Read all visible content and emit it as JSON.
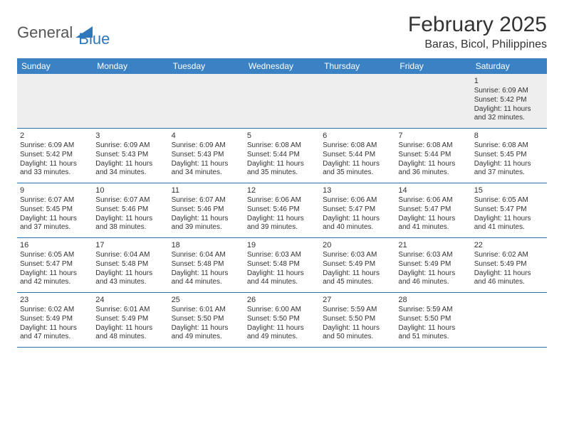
{
  "logo": {
    "text1": "General",
    "text2": "Blue"
  },
  "title": "February 2025",
  "location": "Baras, Bicol, Philippines",
  "colors": {
    "header_bg": "#3b82c4",
    "header_text": "#ffffff",
    "row_border": "#2f6fa8",
    "logo_blue": "#2f77bb",
    "first_row_bg": "#eeeeee"
  },
  "weekdays": [
    "Sunday",
    "Monday",
    "Tuesday",
    "Wednesday",
    "Thursday",
    "Friday",
    "Saturday"
  ],
  "weeks": [
    [
      {
        "blank": true
      },
      {
        "blank": true
      },
      {
        "blank": true
      },
      {
        "blank": true
      },
      {
        "blank": true
      },
      {
        "blank": true
      },
      {
        "day": "1",
        "sunrise": "Sunrise: 6:09 AM",
        "sunset": "Sunset: 5:42 PM",
        "daylight1": "Daylight: 11 hours",
        "daylight2": "and 32 minutes."
      }
    ],
    [
      {
        "day": "2",
        "sunrise": "Sunrise: 6:09 AM",
        "sunset": "Sunset: 5:42 PM",
        "daylight1": "Daylight: 11 hours",
        "daylight2": "and 33 minutes."
      },
      {
        "day": "3",
        "sunrise": "Sunrise: 6:09 AM",
        "sunset": "Sunset: 5:43 PM",
        "daylight1": "Daylight: 11 hours",
        "daylight2": "and 34 minutes."
      },
      {
        "day": "4",
        "sunrise": "Sunrise: 6:09 AM",
        "sunset": "Sunset: 5:43 PM",
        "daylight1": "Daylight: 11 hours",
        "daylight2": "and 34 minutes."
      },
      {
        "day": "5",
        "sunrise": "Sunrise: 6:08 AM",
        "sunset": "Sunset: 5:44 PM",
        "daylight1": "Daylight: 11 hours",
        "daylight2": "and 35 minutes."
      },
      {
        "day": "6",
        "sunrise": "Sunrise: 6:08 AM",
        "sunset": "Sunset: 5:44 PM",
        "daylight1": "Daylight: 11 hours",
        "daylight2": "and 35 minutes."
      },
      {
        "day": "7",
        "sunrise": "Sunrise: 6:08 AM",
        "sunset": "Sunset: 5:44 PM",
        "daylight1": "Daylight: 11 hours",
        "daylight2": "and 36 minutes."
      },
      {
        "day": "8",
        "sunrise": "Sunrise: 6:08 AM",
        "sunset": "Sunset: 5:45 PM",
        "daylight1": "Daylight: 11 hours",
        "daylight2": "and 37 minutes."
      }
    ],
    [
      {
        "day": "9",
        "sunrise": "Sunrise: 6:07 AM",
        "sunset": "Sunset: 5:45 PM",
        "daylight1": "Daylight: 11 hours",
        "daylight2": "and 37 minutes."
      },
      {
        "day": "10",
        "sunrise": "Sunrise: 6:07 AM",
        "sunset": "Sunset: 5:46 PM",
        "daylight1": "Daylight: 11 hours",
        "daylight2": "and 38 minutes."
      },
      {
        "day": "11",
        "sunrise": "Sunrise: 6:07 AM",
        "sunset": "Sunset: 5:46 PM",
        "daylight1": "Daylight: 11 hours",
        "daylight2": "and 39 minutes."
      },
      {
        "day": "12",
        "sunrise": "Sunrise: 6:06 AM",
        "sunset": "Sunset: 5:46 PM",
        "daylight1": "Daylight: 11 hours",
        "daylight2": "and 39 minutes."
      },
      {
        "day": "13",
        "sunrise": "Sunrise: 6:06 AM",
        "sunset": "Sunset: 5:47 PM",
        "daylight1": "Daylight: 11 hours",
        "daylight2": "and 40 minutes."
      },
      {
        "day": "14",
        "sunrise": "Sunrise: 6:06 AM",
        "sunset": "Sunset: 5:47 PM",
        "daylight1": "Daylight: 11 hours",
        "daylight2": "and 41 minutes."
      },
      {
        "day": "15",
        "sunrise": "Sunrise: 6:05 AM",
        "sunset": "Sunset: 5:47 PM",
        "daylight1": "Daylight: 11 hours",
        "daylight2": "and 41 minutes."
      }
    ],
    [
      {
        "day": "16",
        "sunrise": "Sunrise: 6:05 AM",
        "sunset": "Sunset: 5:47 PM",
        "daylight1": "Daylight: 11 hours",
        "daylight2": "and 42 minutes."
      },
      {
        "day": "17",
        "sunrise": "Sunrise: 6:04 AM",
        "sunset": "Sunset: 5:48 PM",
        "daylight1": "Daylight: 11 hours",
        "daylight2": "and 43 minutes."
      },
      {
        "day": "18",
        "sunrise": "Sunrise: 6:04 AM",
        "sunset": "Sunset: 5:48 PM",
        "daylight1": "Daylight: 11 hours",
        "daylight2": "and 44 minutes."
      },
      {
        "day": "19",
        "sunrise": "Sunrise: 6:03 AM",
        "sunset": "Sunset: 5:48 PM",
        "daylight1": "Daylight: 11 hours",
        "daylight2": "and 44 minutes."
      },
      {
        "day": "20",
        "sunrise": "Sunrise: 6:03 AM",
        "sunset": "Sunset: 5:49 PM",
        "daylight1": "Daylight: 11 hours",
        "daylight2": "and 45 minutes."
      },
      {
        "day": "21",
        "sunrise": "Sunrise: 6:03 AM",
        "sunset": "Sunset: 5:49 PM",
        "daylight1": "Daylight: 11 hours",
        "daylight2": "and 46 minutes."
      },
      {
        "day": "22",
        "sunrise": "Sunrise: 6:02 AM",
        "sunset": "Sunset: 5:49 PM",
        "daylight1": "Daylight: 11 hours",
        "daylight2": "and 46 minutes."
      }
    ],
    [
      {
        "day": "23",
        "sunrise": "Sunrise: 6:02 AM",
        "sunset": "Sunset: 5:49 PM",
        "daylight1": "Daylight: 11 hours",
        "daylight2": "and 47 minutes."
      },
      {
        "day": "24",
        "sunrise": "Sunrise: 6:01 AM",
        "sunset": "Sunset: 5:49 PM",
        "daylight1": "Daylight: 11 hours",
        "daylight2": "and 48 minutes."
      },
      {
        "day": "25",
        "sunrise": "Sunrise: 6:01 AM",
        "sunset": "Sunset: 5:50 PM",
        "daylight1": "Daylight: 11 hours",
        "daylight2": "and 49 minutes."
      },
      {
        "day": "26",
        "sunrise": "Sunrise: 6:00 AM",
        "sunset": "Sunset: 5:50 PM",
        "daylight1": "Daylight: 11 hours",
        "daylight2": "and 49 minutes."
      },
      {
        "day": "27",
        "sunrise": "Sunrise: 5:59 AM",
        "sunset": "Sunset: 5:50 PM",
        "daylight1": "Daylight: 11 hours",
        "daylight2": "and 50 minutes."
      },
      {
        "day": "28",
        "sunrise": "Sunrise: 5:59 AM",
        "sunset": "Sunset: 5:50 PM",
        "daylight1": "Daylight: 11 hours",
        "daylight2": "and 51 minutes."
      },
      {
        "blank": true
      }
    ]
  ]
}
